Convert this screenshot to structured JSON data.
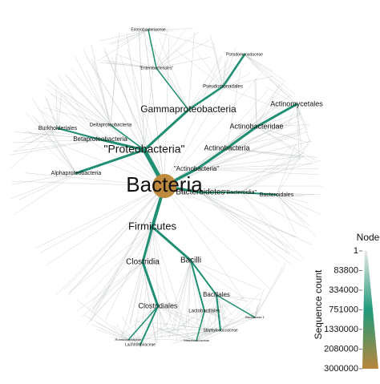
{
  "tree": {
    "nodes": [
      {
        "label": "Bacteria"
      },
      {
        "label": "\"Proteobacteria\""
      },
      {
        "label": "Gammaproteobacteria"
      },
      {
        "label": "Betaproteobacteria"
      },
      {
        "label": "Alphaproteobacteria"
      },
      {
        "label": "Deltaproteobacteria"
      },
      {
        "label": "Burkholderiales"
      },
      {
        "label": "\"Enterobacteriales\""
      },
      {
        "label": "Enterobacteriaceae"
      },
      {
        "label": "Pseudomonadales"
      },
      {
        "label": "Pseudomonadaceae"
      },
      {
        "label": "\"Actinobacteria\""
      },
      {
        "label": "Actinobacteria"
      },
      {
        "label": "Actinobacteridae"
      },
      {
        "label": "Actinomycetales"
      },
      {
        "label": "Bacteroidetes"
      },
      {
        "label": "\"Bacteroidia\""
      },
      {
        "label": "Bacteroidales"
      },
      {
        "label": "Firmicutes"
      },
      {
        "label": "Clostridia"
      },
      {
        "label": "Bacilli"
      },
      {
        "label": "Bacillales"
      },
      {
        "label": "Lactobacillales"
      },
      {
        "label": "Clostridiales"
      },
      {
        "label": "Staphylococcaceae"
      },
      {
        "label": "Lachnospiraceae"
      },
      {
        "label": "Ruminococcaceae"
      },
      {
        "label": "Bacillaceae 1"
      },
      {
        "label": "Streptococcaceae"
      }
    ]
  },
  "legend": {
    "title": "Node",
    "axis_label": "Sequence count",
    "scale": "sqrt",
    "lim": [
      1,
      3000000
    ],
    "ticks": [
      1,
      83800,
      334000,
      751000,
      1330000,
      2080000,
      3000000
    ],
    "colors": [
      "#e8e8e8",
      "#1f9a7a",
      "#b8863c"
    ]
  }
}
